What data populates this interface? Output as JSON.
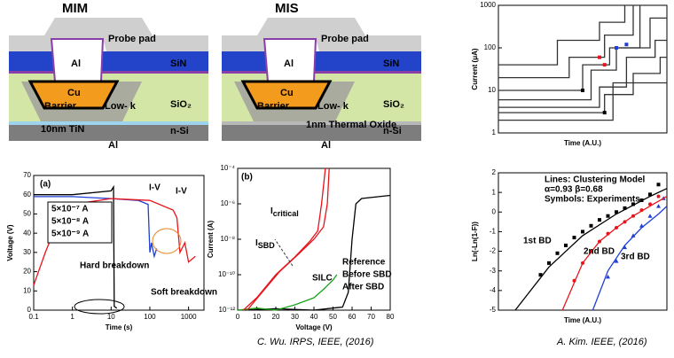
{
  "diagrams": [
    {
      "title": "MIM",
      "labels": [
        "Probe pad",
        "Al",
        "SiN",
        "Cu",
        "Barrier",
        "Low- k",
        "SiO₂",
        "10nm TiN",
        "n-Si",
        "Al"
      ]
    },
    {
      "title": "MIS",
      "labels": [
        "Probe pad",
        "Al",
        "SiN",
        "Cu",
        "Barrier",
        "Low- k",
        "SiO₂",
        "1nm Thermal Oxide",
        "n-Si",
        "Al"
      ]
    }
  ],
  "chart_data": [
    {
      "type": "line",
      "xlabel": "Time (s)",
      "ylabel": "Voltage (V)",
      "xlog": true,
      "xlim": [
        0.1,
        2500
      ],
      "xticks": [
        0.1,
        1,
        10,
        100,
        1000
      ],
      "ylim": [
        0,
        70
      ],
      "yticks": [
        0,
        10,
        20,
        30,
        40,
        50,
        60,
        70
      ],
      "series": [
        {
          "name": "5×10⁻⁷ A",
          "color": "#000000",
          "x": [
            0.1,
            1,
            10,
            11.5,
            12,
            14
          ],
          "values": [
            60,
            60,
            62,
            64,
            2,
            1
          ]
        },
        {
          "name": "5×10⁻⁸ A",
          "color": "#1f3fd6",
          "x": [
            0.1,
            1,
            10,
            50,
            90,
            100,
            110,
            130,
            150
          ],
          "values": [
            59,
            59,
            58,
            57,
            55,
            30,
            35,
            28,
            32
          ]
        },
        {
          "name": "5×10⁻⁹ A",
          "color": "#e8141b",
          "x": [
            0.1,
            0.2,
            0.4,
            1,
            10,
            100,
            400,
            500,
            600,
            800,
            1000,
            1500
          ],
          "values": [
            13,
            30,
            45,
            55,
            58,
            57,
            52,
            48,
            30,
            35,
            25,
            28
          ]
        }
      ],
      "annotations": [
        {
          "text": "(a)"
        },
        {
          "text": "I-V",
          "color": "#1aa51a"
        },
        {
          "text": "I-V",
          "color": "#e8141b"
        },
        {
          "text": "Hard breakdown"
        },
        {
          "text": "Soft breakdown",
          "color": "#e8862a"
        }
      ]
    },
    {
      "type": "line",
      "xlabel": "Voltage (V)",
      "ylabel": "Current (A)",
      "ylog": true,
      "xlim": [
        0,
        80
      ],
      "xticks": [
        0,
        10,
        20,
        30,
        40,
        50,
        60,
        70,
        80
      ],
      "ylim": [
        1e-12,
        0.0001
      ],
      "yticks": [
        {
          "value": 1e-12,
          "label": "10⁻¹²"
        },
        {
          "value": 1e-10,
          "label": "10⁻¹⁰"
        },
        {
          "value": 1e-08,
          "label": "10⁻⁸"
        },
        {
          "value": 1e-06,
          "label": "10⁻⁶"
        },
        {
          "value": 0.0001,
          "label": "10⁻⁴"
        }
      ],
      "series": [
        {
          "name": "Reference",
          "color": "#000000",
          "x": [
            0,
            20,
            40,
            55,
            58,
            60,
            62,
            65,
            80
          ],
          "values": [
            1e-12,
            1.2e-12,
            1e-12,
            1.5e-12,
            1e-11,
            1e-08,
            1e-06,
            2e-06,
            3e-06
          ]
        },
        {
          "name": "Before SBD",
          "color": "#1aa51a",
          "x": [
            0,
            10,
            20,
            30,
            40,
            45,
            50,
            52
          ],
          "values": [
            1e-12,
            1.3e-12,
            1e-12,
            2e-12,
            5e-12,
            1.5e-11,
            5e-11,
            1e-10
          ]
        },
        {
          "name": "After SBD",
          "color": "#e8141b",
          "x": [
            3,
            10,
            20,
            30,
            38,
            42,
            44,
            46
          ],
          "values": [
            1e-12,
            5e-12,
            1e-10,
            1e-09,
            8e-09,
            3e-08,
            1e-06,
            0.0001
          ]
        },
        {
          "color": "#e8141b",
          "x": [
            5,
            12,
            22,
            32,
            40,
            45,
            47,
            48
          ],
          "values": [
            1e-12,
            8e-12,
            1.5e-10,
            1.5e-09,
            1e-08,
            5e-08,
            1e-06,
            0.0001
          ]
        }
      ],
      "annotations": [
        {
          "text": "(b)"
        },
        {
          "symbol": "I",
          "subscript": "critical"
        },
        {
          "symbol": "I",
          "subscript": "SBD",
          "color": "#e8141b"
        },
        {
          "text": "SILC",
          "color": "#1aa51a"
        }
      ]
    },
    {
      "type": "line",
      "xlabel": "Time (A.U.)",
      "ylabel": "Current (μA)",
      "ylog": true,
      "xlim": [
        0,
        10
      ],
      "ylim": [
        1,
        1000
      ],
      "yticks": [
        1,
        10,
        100,
        1000
      ],
      "series": [
        {
          "color": "#333333",
          "x": [
            0,
            3.5,
            3.5,
            6,
            6,
            7.5,
            7.5,
            10
          ],
          "values": [
            40,
            40,
            150,
            150,
            400,
            400,
            1000,
            1000
          ]
        },
        {
          "color": "#333333",
          "x": [
            0,
            4.2,
            4.2,
            6.3,
            6.3,
            8,
            8
          ],
          "values": [
            20,
            20,
            60,
            60,
            200,
            200,
            1000
          ]
        },
        {
          "color": "#333333",
          "x": [
            0,
            5,
            5,
            6.6,
            6.6,
            8.4,
            8.4
          ],
          "values": [
            10,
            10,
            40,
            40,
            100,
            100,
            1000
          ]
        },
        {
          "color": "#333333",
          "x": [
            0,
            5.5,
            5.5,
            7,
            7,
            9,
            9,
            10
          ],
          "values": [
            6,
            6,
            30,
            30,
            100,
            100,
            500,
            500
          ]
        },
        {
          "color": "#333333",
          "x": [
            0,
            6,
            6,
            7.6,
            7.6,
            9.3,
            9.3,
            10
          ],
          "values": [
            4,
            4,
            12,
            12,
            60,
            60,
            150,
            150
          ]
        },
        {
          "color": "#333333",
          "x": [
            0,
            6.3,
            6.3,
            8,
            8,
            9.6,
            9.6,
            10
          ],
          "values": [
            3,
            3,
            8,
            8,
            25,
            25,
            60,
            60
          ]
        },
        {
          "color": "#333333",
          "x": [
            0,
            6.8,
            6.8,
            10
          ],
          "values": [
            2,
            2,
            15,
            15
          ]
        },
        {
          "color": "#e8141b",
          "marker": "square",
          "x": [
            6,
            6.3
          ],
          "values": [
            60,
            40
          ]
        },
        {
          "color": "#1f3fd6",
          "marker": "square",
          "x": [
            7,
            7.6
          ],
          "values": [
            100,
            120
          ]
        },
        {
          "color": "#000000",
          "marker": "square",
          "x": [
            6.3,
            5
          ],
          "values": [
            3,
            10
          ]
        }
      ]
    },
    {
      "type": "scatter",
      "xlabel": "Time (A.U.)",
      "ylabel": "Ln(-Ln(1-F))",
      "xlim": [
        0,
        10
      ],
      "ylim": [
        -5,
        2
      ],
      "yticks": [
        -5,
        -4,
        -3,
        -2,
        -1,
        0,
        1,
        2
      ],
      "series": [
        {
          "color": "#000000",
          "marker": "square",
          "x": [
            2.5,
            3,
            3.5,
            4,
            4.5,
            5,
            5.5,
            6,
            6.5,
            7,
            7.5,
            8,
            8.5,
            9,
            9.5
          ],
          "values": [
            -3.2,
            -2.6,
            -2.1,
            -1.7,
            -1.3,
            -1,
            -0.7,
            -0.4,
            -0.2,
            0,
            0.2,
            0.4,
            0.6,
            0.9,
            1.4
          ]
        },
        {
          "color": "#e8141b",
          "marker": "circle",
          "x": [
            4.5,
            5,
            5.5,
            6,
            6.5,
            7,
            7.5,
            8,
            8.5,
            9,
            9.5
          ],
          "values": [
            -3.5,
            -2.6,
            -2,
            -1.5,
            -1.1,
            -0.8,
            -0.5,
            -0.2,
            0.1,
            0.4,
            0.8
          ]
        },
        {
          "color": "#1f3fd6",
          "marker": "triangle",
          "x": [
            6.5,
            7,
            7.5,
            8,
            8.5,
            9,
            9.5,
            9.8
          ],
          "values": [
            -3.3,
            -2.5,
            -1.8,
            -1.2,
            -0.7,
            -0.2,
            0.3,
            0.7
          ]
        },
        {
          "color": "#000000",
          "x": [
            1,
            3,
            5,
            7,
            9,
            10
          ],
          "values": [
            -5,
            -2.8,
            -1.2,
            -0.1,
            0.8,
            1.2
          ]
        },
        {
          "color": "#e8141b",
          "x": [
            3.8,
            5,
            6,
            7,
            8,
            9,
            10
          ],
          "values": [
            -5,
            -2.6,
            -1.5,
            -0.8,
            -0.2,
            0.3,
            0.8
          ]
        },
        {
          "color": "#1f3fd6",
          "x": [
            5.6,
            6.5,
            7.5,
            8.5,
            9.5,
            10
          ],
          "values": [
            -5,
            -3,
            -1.7,
            -0.8,
            -0.1,
            0.3
          ]
        }
      ],
      "annotations": [
        {
          "text": "Lines: Clustering Model"
        },
        {
          "text": "α=0.93 β=0.68"
        },
        {
          "text": "Symbols: Experiments"
        },
        {
          "text": "1st BD"
        },
        {
          "text": "2nd BD",
          "color": "#e8141b"
        },
        {
          "text": "3rd BD",
          "color": "#1f3fd6"
        }
      ]
    }
  ],
  "citations": [
    "C. Wu. IRPS, IEEE, (2016)",
    "A. Kim. IEEE, (2016)"
  ]
}
